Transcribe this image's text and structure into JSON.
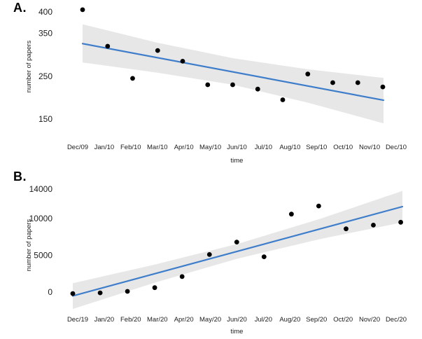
{
  "figure": {
    "panel_count": 2,
    "description_visible_text_only": true
  },
  "colors": {
    "trend_line": "#3d7dca",
    "ci_band": "#e7e7e7",
    "point": "#000000",
    "text": "#1c1c1c",
    "background": "#ffffff"
  },
  "chart_data": [
    {
      "id": "A",
      "type": "scatter",
      "panel_label": "A.",
      "xlabel": "time",
      "ylabel": "number of papers",
      "x_tick_labels": [
        "Dec/09",
        "Jan/10",
        "Feb/10",
        "Mar/10",
        "Apr/10",
        "May/10",
        "Jun/10",
        "Jul/10",
        "Aug/10",
        "Sep/10",
        "Oct/10",
        "Nov/10",
        "Dec/10"
      ],
      "y_tick_labels": [
        400,
        350,
        250,
        150
      ],
      "ylim": [
        135,
        410
      ],
      "grid": false,
      "legend": null,
      "values": [
        405,
        320,
        245,
        310,
        285,
        230,
        230,
        220,
        195,
        255,
        235,
        235,
        225
      ],
      "trend_line": {
        "y_start": 326,
        "y_end": 194
      },
      "ci_band": {
        "fractions": [
          0,
          0.25,
          0.5,
          0.75,
          1
        ],
        "upper": [
          371,
          328,
          292,
          266,
          246
        ],
        "lower": [
          282,
          258,
          230,
          188,
          140
        ]
      }
    },
    {
      "id": "B",
      "type": "scatter",
      "panel_label": "B.",
      "xlabel": "time",
      "ylabel": "number of papers",
      "x_tick_labels": [
        "Dec/19",
        "Jan/20",
        "Feb/20",
        "Mar/20",
        "Apr/20",
        "May/20",
        "Jun/20",
        "Jul/20",
        "Aug/20",
        "Sep/20",
        "Oct/20",
        "Nov/20",
        "Dec/20"
      ],
      "y_tick_labels": [
        14000,
        10000,
        5000,
        0
      ],
      "ylim": [
        -2500,
        14000
      ],
      "grid": false,
      "legend": null,
      "values": [
        -200,
        -100,
        100,
        600,
        2100,
        5100,
        6800,
        4800,
        10600,
        11700,
        8600,
        9100,
        9500
      ],
      "trend_line": {
        "y_start": -520,
        "y_end": 11620
      },
      "ci_band": {
        "fractions": [
          0,
          0.25,
          0.5,
          0.75,
          1
        ],
        "upper": [
          1200,
          3750,
          6550,
          9950,
          13750
        ],
        "lower": [
          -2300,
          1300,
          4550,
          7200,
          9480
        ]
      }
    }
  ]
}
